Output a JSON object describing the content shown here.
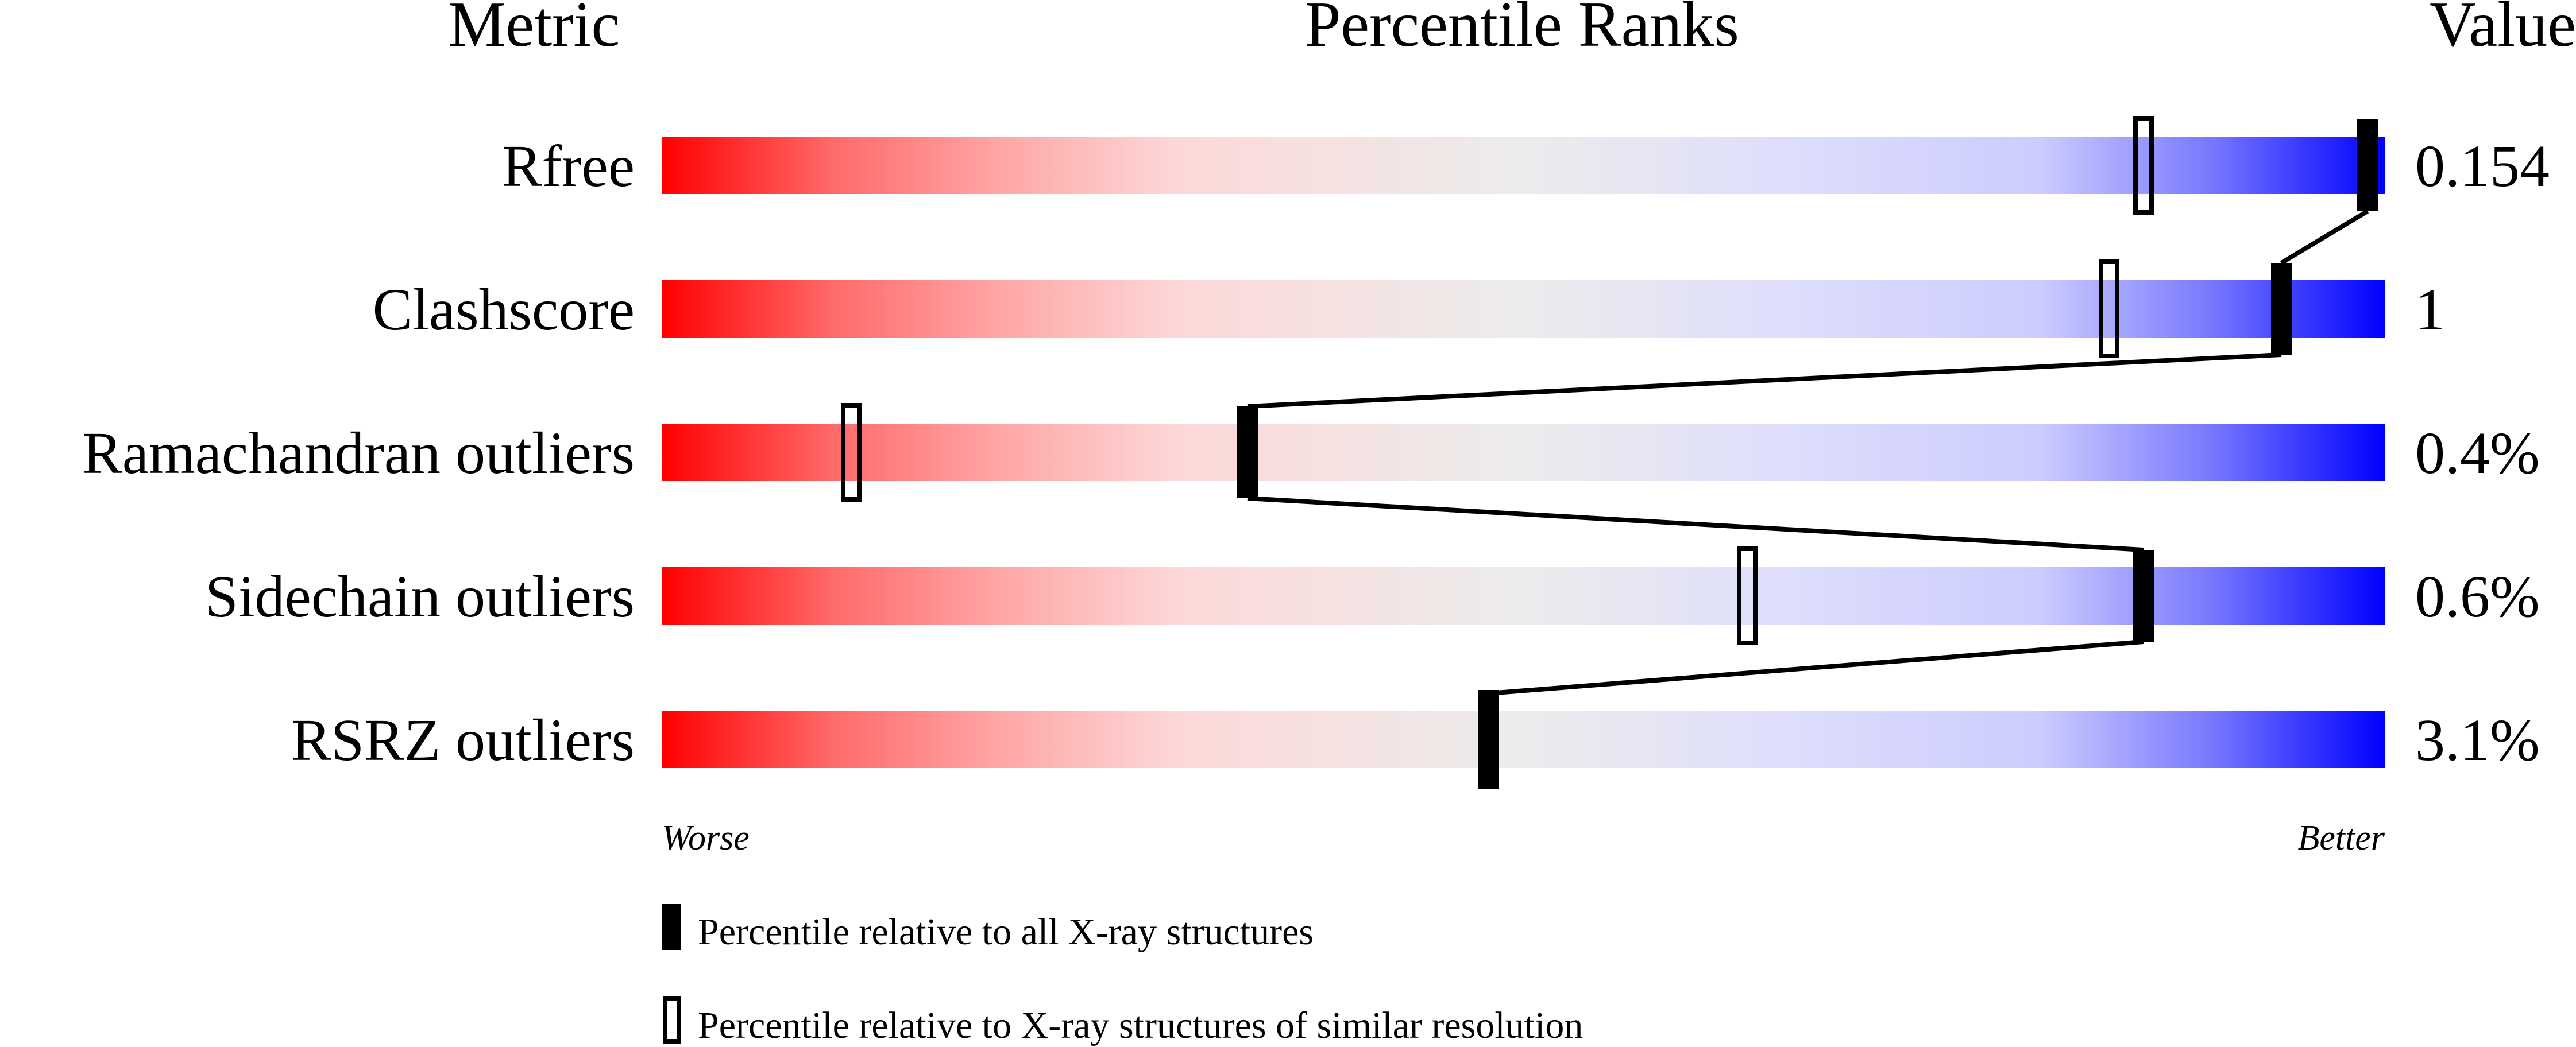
{
  "chart_data": {
    "type": "bar",
    "headers": {
      "metric": "Metric",
      "ranks": "Percentile Ranks",
      "value": "Value"
    },
    "xlim": [
      0,
      100
    ],
    "axis_labels": {
      "left": "Worse",
      "right": "Better"
    },
    "rows": [
      {
        "metric": "Rfree",
        "value": "0.154",
        "percentile_all": 99,
        "percentile_similar": 86
      },
      {
        "metric": "Clashscore",
        "value": "1",
        "percentile_all": 94,
        "percentile_similar": 84
      },
      {
        "metric": "Ramachandran outliers",
        "value": "0.4%",
        "percentile_all": 34,
        "percentile_similar": 11
      },
      {
        "metric": "Sidechain outliers",
        "value": "0.6%",
        "percentile_all": 86,
        "percentile_similar": 63
      },
      {
        "metric": "RSRZ outliers",
        "value": "3.1%",
        "percentile_all": 48,
        "percentile_similar": 48
      }
    ],
    "legend": {
      "filled": "Percentile relative to all X-ray structures",
      "open": "Percentile relative to X-ray structures of similar resolution"
    },
    "colors": {
      "worse": "#ff0000",
      "middle": "#eeeeee",
      "better": "#0000ff",
      "marker": "#000000"
    }
  }
}
